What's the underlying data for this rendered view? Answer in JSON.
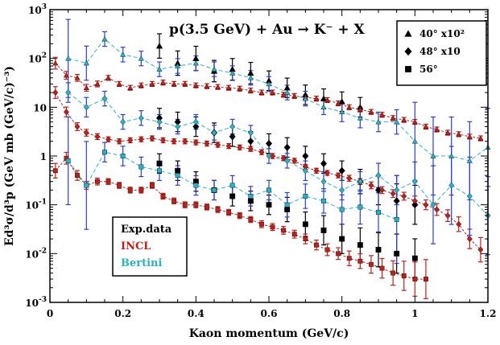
{
  "chart_data": {
    "type": "scatter",
    "title": "p(3.5 GeV) + Au → K⁻ + X",
    "xlabel": "Kaon momentum (GeV/c)",
    "ylabel": "Ed³σ/d³p (GeV mb (GeV/c)⁻³)",
    "xlim": [
      0,
      1.2
    ],
    "ylim": [
      0.001,
      1000
    ],
    "yscale": "log",
    "x_ticks": [
      "0",
      "0.2",
      "0.4",
      "0.6",
      "0.8",
      "1",
      "1.2"
    ],
    "y_ticks": [
      {
        "base": "10",
        "exp": "3"
      },
      {
        "base": "10",
        "exp": "2"
      },
      {
        "base": "10",
        "exp": ""
      },
      {
        "base": "1",
        "exp": ""
      },
      {
        "base": "10",
        "exp": "-1"
      },
      {
        "base": "10",
        "exp": "-2"
      },
      {
        "base": "10",
        "exp": "-3"
      }
    ],
    "legend_angles": {
      "position": "top-right",
      "entries": [
        {
          "marker": "triangle",
          "label": "40° x10²"
        },
        {
          "marker": "diamond",
          "label": "48° x10"
        },
        {
          "marker": "square",
          "label": "56°"
        }
      ]
    },
    "legend_models": {
      "position": "bottom-left",
      "entries": [
        {
          "label": "Exp.data",
          "color": "#000000"
        },
        {
          "label": "INCL",
          "color": "#c0201a"
        },
        {
          "label": "Bertini",
          "color": "#27b3c7"
        }
      ]
    },
    "colors": {
      "incl": "#c0201a",
      "bertini": "#27b3c7",
      "bertini_err": "#2a3fd6",
      "exp": "#000000"
    },
    "series": [
      {
        "name": "Exp.data",
        "angle": "40° x10²",
        "marker": "triangle",
        "color": "#000000",
        "x": [
          0.3,
          0.35,
          0.4,
          0.45,
          0.5,
          0.55,
          0.6,
          0.65,
          0.7,
          0.75,
          0.8,
          0.85
        ],
        "y": [
          180,
          80,
          100,
          55,
          60,
          50,
          35,
          25,
          18,
          15,
          13,
          10
        ],
        "err": [
          0.25,
          0.25,
          0.25,
          0.22,
          0.22,
          0.22,
          0.2,
          0.2,
          0.2,
          0.2,
          0.2,
          0.2
        ]
      },
      {
        "name": "Exp.data",
        "angle": "48° x10",
        "marker": "diamond",
        "color": "#000000",
        "x": [
          0.3,
          0.35,
          0.4,
          0.45,
          0.5,
          0.55,
          0.6,
          0.65,
          0.7,
          0.75,
          0.8,
          0.85,
          0.9,
          0.95,
          1.0
        ],
        "y": [
          6,
          5,
          4,
          3,
          2.5,
          2,
          1.8,
          1.5,
          1,
          0.7,
          0.5,
          0.3,
          0.2,
          0.12,
          0.1
        ],
        "err": [
          0.2,
          0.2,
          0.2,
          0.2,
          0.2,
          0.2,
          0.2,
          0.2,
          0.2,
          0.2,
          0.2,
          0.25,
          0.3,
          0.35,
          0.4
        ]
      },
      {
        "name": "Exp.data",
        "angle": "56°",
        "marker": "square",
        "color": "#000000",
        "x": [
          0.3,
          0.35,
          0.4,
          0.45,
          0.5,
          0.55,
          0.6,
          0.65,
          0.7,
          0.75,
          0.8,
          0.85,
          0.9,
          0.95,
          1.0
        ],
        "y": [
          0.7,
          0.5,
          0.3,
          0.2,
          0.15,
          0.12,
          0.1,
          0.08,
          0.04,
          0.03,
          0.02,
          0.015,
          0.012,
          0.01,
          0.008
        ],
        "err": [
          0.2,
          0.2,
          0.2,
          0.2,
          0.2,
          0.2,
          0.2,
          0.25,
          0.25,
          0.3,
          0.3,
          0.35,
          0.35,
          0.4,
          0.4
        ]
      },
      {
        "name": "INCL",
        "angle": "40° x10²",
        "marker": "triangle",
        "color": "#c0201a",
        "x": [
          0.015,
          0.045,
          0.075,
          0.1,
          0.13,
          0.16,
          0.19,
          0.22,
          0.25,
          0.28,
          0.31,
          0.34,
          0.37,
          0.4,
          0.43,
          0.46,
          0.49,
          0.52,
          0.55,
          0.58,
          0.61,
          0.64,
          0.67,
          0.7,
          0.73,
          0.76,
          0.79,
          0.82,
          0.85,
          0.88,
          0.91,
          0.94,
          0.97,
          1.0,
          1.03,
          1.06,
          1.09,
          1.12,
          1.15,
          1.18
        ],
        "y": [
          80,
          45,
          40,
          25,
          30,
          40,
          30,
          25,
          28,
          30,
          32,
          30,
          30,
          28,
          27,
          26,
          25,
          24,
          22,
          20,
          20,
          18,
          17,
          16,
          15,
          14,
          12,
          10,
          9,
          8,
          7,
          6,
          5.5,
          5,
          4,
          3.5,
          3,
          2.8,
          2.5,
          2.3
        ],
        "err": [
          0.12,
          0.08,
          0.07,
          0.07,
          0.06,
          0.05,
          0.05,
          0.05,
          0.05,
          0.05,
          0.05,
          0.05,
          0.05,
          0.05,
          0.05,
          0.05,
          0.05,
          0.05,
          0.05,
          0.05,
          0.05,
          0.05,
          0.05,
          0.05,
          0.05,
          0.05,
          0.05,
          0.05,
          0.05,
          0.05,
          0.05,
          0.05,
          0.05,
          0.05,
          0.05,
          0.05,
          0.05,
          0.05,
          0.05,
          0.05
        ]
      },
      {
        "name": "INCL",
        "angle": "48° x10",
        "marker": "diamond",
        "color": "#c0201a",
        "x": [
          0.015,
          0.045,
          0.075,
          0.1,
          0.13,
          0.16,
          0.19,
          0.22,
          0.25,
          0.28,
          0.31,
          0.34,
          0.37,
          0.4,
          0.43,
          0.46,
          0.49,
          0.52,
          0.55,
          0.58,
          0.61,
          0.64,
          0.67,
          0.7,
          0.73,
          0.76,
          0.79,
          0.82,
          0.85,
          0.88,
          0.91,
          0.94,
          0.97,
          1.0,
          1.03,
          1.06,
          1.09,
          1.12,
          1.15,
          1.18
        ],
        "y": [
          20,
          8,
          4,
          3,
          2.5,
          2.2,
          2,
          2.1,
          2.2,
          2.3,
          2.1,
          2,
          2,
          1.9,
          1.8,
          1.7,
          1.6,
          1.5,
          1.4,
          1.2,
          1,
          0.9,
          0.8,
          0.6,
          0.5,
          0.45,
          0.4,
          0.35,
          0.3,
          0.25,
          0.2,
          0.17,
          0.15,
          0.12,
          0.1,
          0.08,
          0.06,
          0.04,
          0.02,
          0.012
        ],
        "err": [
          0.12,
          0.1,
          0.08,
          0.07,
          0.06,
          0.05,
          0.05,
          0.05,
          0.05,
          0.05,
          0.05,
          0.05,
          0.05,
          0.05,
          0.05,
          0.05,
          0.05,
          0.05,
          0.05,
          0.05,
          0.05,
          0.05,
          0.05,
          0.05,
          0.05,
          0.05,
          0.05,
          0.06,
          0.06,
          0.07,
          0.07,
          0.08,
          0.08,
          0.1,
          0.1,
          0.12,
          0.12,
          0.15,
          0.2,
          0.25
        ]
      },
      {
        "name": "INCL",
        "angle": "56°",
        "marker": "square",
        "color": "#c0201a",
        "x": [
          0.015,
          0.045,
          0.075,
          0.1,
          0.13,
          0.16,
          0.19,
          0.22,
          0.25,
          0.28,
          0.31,
          0.34,
          0.37,
          0.4,
          0.43,
          0.46,
          0.49,
          0.52,
          0.55,
          0.58,
          0.61,
          0.64,
          0.67,
          0.7,
          0.73,
          0.76,
          0.79,
          0.82,
          0.85,
          0.88,
          0.91,
          0.94,
          0.97,
          1.0,
          1.03
        ],
        "y": [
          0.5,
          0.9,
          0.4,
          0.25,
          0.3,
          0.3,
          0.25,
          0.2,
          0.2,
          0.25,
          0.15,
          0.12,
          0.1,
          0.1,
          0.09,
          0.08,
          0.07,
          0.06,
          0.05,
          0.04,
          0.035,
          0.03,
          0.025,
          0.02,
          0.015,
          0.012,
          0.01,
          0.008,
          0.007,
          0.006,
          0.005,
          0.004,
          0.0035,
          0.003,
          0.003
        ],
        "err": [
          0.15,
          0.12,
          0.1,
          0.08,
          0.07,
          0.06,
          0.06,
          0.06,
          0.06,
          0.06,
          0.06,
          0.06,
          0.06,
          0.06,
          0.06,
          0.06,
          0.06,
          0.06,
          0.06,
          0.07,
          0.07,
          0.08,
          0.08,
          0.1,
          0.1,
          0.12,
          0.12,
          0.15,
          0.15,
          0.18,
          0.2,
          0.25,
          0.3,
          0.35,
          0.4
        ]
      },
      {
        "name": "Bertini",
        "angle": "40° x10²",
        "marker": "triangle",
        "color": "#27b3c7",
        "x": [
          0.05,
          0.1,
          0.15,
          0.2,
          0.25,
          0.3,
          0.35,
          0.4,
          0.45,
          0.5,
          0.55,
          0.6,
          0.65,
          0.7,
          0.75,
          0.8,
          0.85,
          0.9,
          0.95,
          1.0,
          1.05,
          1.1,
          1.15,
          1.2
        ],
        "y": [
          100,
          80,
          250,
          120,
          100,
          60,
          70,
          80,
          60,
          50,
          40,
          30,
          20,
          15,
          10,
          8,
          6,
          5,
          5,
          2,
          1,
          1,
          0.8,
          1.5
        ],
        "err": [
          0.8,
          0.35,
          0.15,
          0.15,
          0.15,
          0.15,
          0.15,
          0.15,
          0.15,
          0.15,
          0.15,
          0.15,
          0.15,
          0.15,
          0.15,
          0.2,
          0.2,
          0.2,
          0.25,
          0.8,
          0.8,
          0.8,
          0.8,
          0.8
        ]
      },
      {
        "name": "Bertini",
        "angle": "48° x10",
        "marker": "diamond",
        "color": "#27b3c7",
        "x": [
          0.05,
          0.1,
          0.15,
          0.2,
          0.25,
          0.3,
          0.35,
          0.4,
          0.45,
          0.5,
          0.55,
          0.6,
          0.65,
          0.7,
          0.75,
          0.8,
          0.85,
          0.9,
          0.95,
          1.0,
          1.05,
          1.1,
          1.15,
          1.2
        ],
        "y": [
          20,
          10,
          15,
          5,
          6,
          5,
          4,
          5,
          3,
          4,
          3,
          1,
          0.8,
          0.5,
          0.3,
          0.2,
          0.3,
          0.4,
          0.2,
          0.3,
          0.1,
          0.25,
          0.15,
          0.06
        ],
        "err": [
          0.2,
          0.2,
          0.15,
          0.15,
          0.15,
          0.15,
          0.15,
          0.15,
          0.15,
          0.15,
          0.15,
          0.15,
          0.15,
          0.2,
          0.2,
          0.2,
          0.2,
          0.25,
          0.3,
          0.4,
          0.8,
          0.8,
          0.8,
          0.8
        ]
      },
      {
        "name": "Bertini",
        "angle": "56°",
        "marker": "square",
        "color": "#27b3c7",
        "x": [
          0.05,
          0.1,
          0.15,
          0.2,
          0.25,
          0.3,
          0.35,
          0.4,
          0.45,
          0.5,
          0.55,
          0.6,
          0.65,
          0.7,
          0.75,
          0.8,
          0.85,
          0.9,
          0.95
        ],
        "y": [
          0.8,
          0.25,
          1.2,
          1,
          0.6,
          0.5,
          0.4,
          0.25,
          0.2,
          0.25,
          0.15,
          0.2,
          0.1,
          0.15,
          0.12,
          0.08,
          0.09,
          0.07,
          0.05
        ],
        "err": [
          0.9,
          0.9,
          0.2,
          0.2,
          0.2,
          0.2,
          0.2,
          0.2,
          0.2,
          0.2,
          0.2,
          0.2,
          0.25,
          0.25,
          0.25,
          0.3,
          0.35,
          0.4,
          0.9
        ]
      }
    ]
  }
}
